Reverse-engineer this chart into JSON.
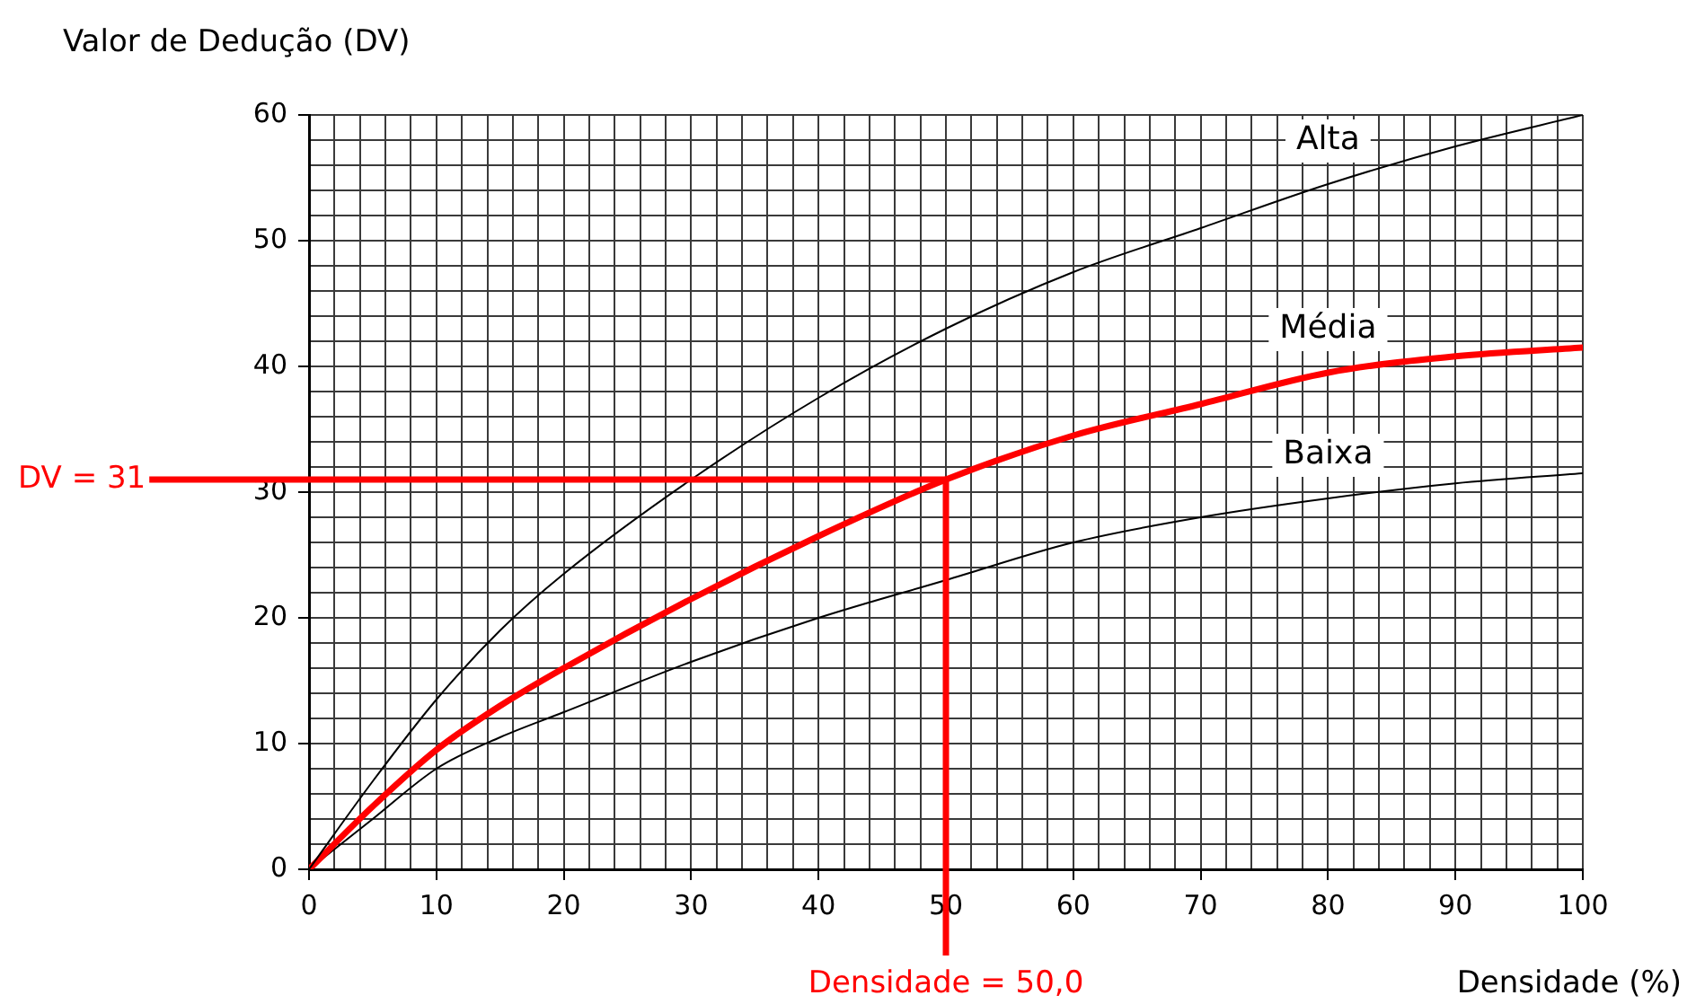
{
  "chart_data": {
    "type": "line",
    "xlabel": "Densidade (%)",
    "ylabel": "Valor de Dedução (DV)",
    "x": [
      0,
      5,
      10,
      15,
      20,
      30,
      40,
      50,
      60,
      70,
      80,
      90,
      100
    ],
    "series": [
      {
        "name": "Alta",
        "color": "#000000",
        "values": [
          0,
          7,
          13.5,
          19,
          23.5,
          31,
          37.5,
          43,
          47.5,
          51,
          54.5,
          57.5,
          60
        ]
      },
      {
        "name": "Média",
        "color": "#ff0000",
        "values": [
          0,
          5,
          9.5,
          13,
          16,
          21.5,
          26.5,
          31,
          34.5,
          37,
          39.5,
          40.8,
          41.5
        ]
      },
      {
        "name": "Baixa",
        "color": "#000000",
        "values": [
          0,
          4,
          8,
          10.5,
          12.5,
          16.5,
          20,
          23,
          26,
          28,
          29.5,
          30.7,
          31.5
        ]
      }
    ],
    "xlim": [
      0,
      100
    ],
    "ylim": [
      0,
      60
    ],
    "xticks": [
      0,
      {
        "value": 2,
        "label": null
      },
      {
        "value": 4,
        "label": null
      },
      {
        "value": 6,
        "label": null
      },
      {
        "value": 8,
        "label": null
      },
      10,
      {
        "value": 12,
        "label": null
      },
      {
        "value": 14,
        "label": null
      },
      {
        "value": 16,
        "label": null
      },
      {
        "value": 18,
        "label": null
      },
      20,
      {
        "value": 22,
        "label": null
      },
      {
        "value": 24,
        "label": null
      },
      {
        "value": 26,
        "label": null
      },
      {
        "value": 28,
        "label": null
      },
      30,
      {
        "value": 32,
        "label": null
      },
      {
        "value": 34,
        "label": null
      },
      {
        "value": 36,
        "label": null
      },
      {
        "value": 38,
        "label": null
      },
      40,
      {
        "value": 42,
        "label": null
      },
      {
        "value": 44,
        "label": null
      },
      {
        "value": 46,
        "label": null
      },
      {
        "value": 48,
        "label": null
      },
      50,
      {
        "value": 52,
        "label": null
      },
      {
        "value": 54,
        "label": null
      },
      {
        "value": 56,
        "label": null
      },
      {
        "value": 58,
        "label": null
      },
      60,
      {
        "value": 62,
        "label": null
      },
      {
        "value": 64,
        "label": null
      },
      {
        "value": 66,
        "label": null
      },
      {
        "value": 68,
        "label": null
      },
      70,
      {
        "value": 72,
        "label": null
      },
      {
        "value": 74,
        "label": null
      },
      {
        "value": 76,
        "label": null
      },
      {
        "value": 78,
        "label": null
      },
      80,
      {
        "value": 82,
        "label": null
      },
      {
        "value": 84,
        "label": null
      },
      {
        "value": 86,
        "label": null
      },
      {
        "value": 88,
        "label": null
      },
      90,
      {
        "value": 92,
        "label": null
      },
      {
        "value": 94,
        "label": null
      },
      {
        "value": 96,
        "label": null
      },
      {
        "value": 98,
        "label": null
      },
      100
    ],
    "yticks": [
      0,
      {
        "value": 2,
        "label": null
      },
      {
        "value": 4,
        "label": null
      },
      {
        "value": 6,
        "label": null
      },
      {
        "value": 8,
        "label": null
      },
      10,
      {
        "value": 12,
        "label": null
      },
      {
        "value": 14,
        "label": null
      },
      {
        "value": 16,
        "label": null
      },
      {
        "value": 18,
        "label": null
      },
      20,
      {
        "value": 22,
        "label": null
      },
      {
        "value": 24,
        "label": null
      },
      {
        "value": 26,
        "label": null
      },
      {
        "value": 28,
        "label": null
      },
      30,
      {
        "value": 32,
        "label": null
      },
      {
        "value": 34,
        "label": null
      },
      {
        "value": 36,
        "label": null
      },
      {
        "value": 38,
        "label": null
      },
      40,
      {
        "value": 42,
        "label": null
      },
      {
        "value": 44,
        "label": null
      },
      {
        "value": 46,
        "label": null
      },
      {
        "value": 48,
        "label": null
      },
      50,
      {
        "value": 52,
        "label": null
      },
      {
        "value": 54,
        "label": null
      },
      {
        "value": 56,
        "label": null
      },
      {
        "value": 58,
        "label": null
      },
      60
    ],
    "ref_lines": [
      {
        "axis": "y",
        "value": 31,
        "label": "DV = 31",
        "color": "#ff0000"
      },
      {
        "axis": "x",
        "value": 50,
        "label": "Densidade = 50,0",
        "color": "#ff0000"
      }
    ],
    "grid": true,
    "legend": false,
    "marker": "none",
    "line_style": "solid"
  }
}
